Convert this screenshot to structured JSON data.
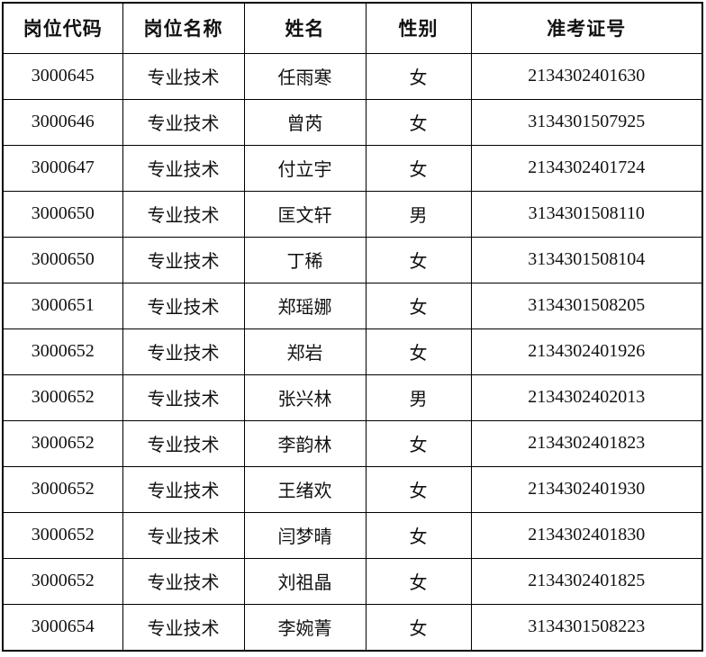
{
  "table": {
    "columns": [
      "岗位代码",
      "岗位名称",
      "姓名",
      "性别",
      "准考证号"
    ],
    "rows": [
      [
        "3000645",
        "专业技术",
        "任雨寒",
        "女",
        "2134302401630"
      ],
      [
        "3000646",
        "专业技术",
        "曾芮",
        "女",
        "3134301507925"
      ],
      [
        "3000647",
        "专业技术",
        "付立宇",
        "女",
        "2134302401724"
      ],
      [
        "3000650",
        "专业技术",
        "匡文轩",
        "男",
        "3134301508110"
      ],
      [
        "3000650",
        "专业技术",
        "丁稀",
        "女",
        "3134301508104"
      ],
      [
        "3000651",
        "专业技术",
        "郑瑶娜",
        "女",
        "3134301508205"
      ],
      [
        "3000652",
        "专业技术",
        "郑岩",
        "女",
        "2134302401926"
      ],
      [
        "3000652",
        "专业技术",
        "张兴林",
        "男",
        "2134302402013"
      ],
      [
        "3000652",
        "专业技术",
        "李韵林",
        "女",
        "2134302401823"
      ],
      [
        "3000652",
        "专业技术",
        "王绪欢",
        "女",
        "2134302401930"
      ],
      [
        "3000652",
        "专业技术",
        "闫梦晴",
        "女",
        "2134302401830"
      ],
      [
        "3000652",
        "专业技术",
        "刘祖晶",
        "女",
        "2134302401825"
      ],
      [
        "3000654",
        "专业技术",
        "李婉菁",
        "女",
        "3134301508223"
      ]
    ],
    "colors": {
      "border": "#000000",
      "text": "#111111",
      "background": "#ffffff"
    }
  }
}
